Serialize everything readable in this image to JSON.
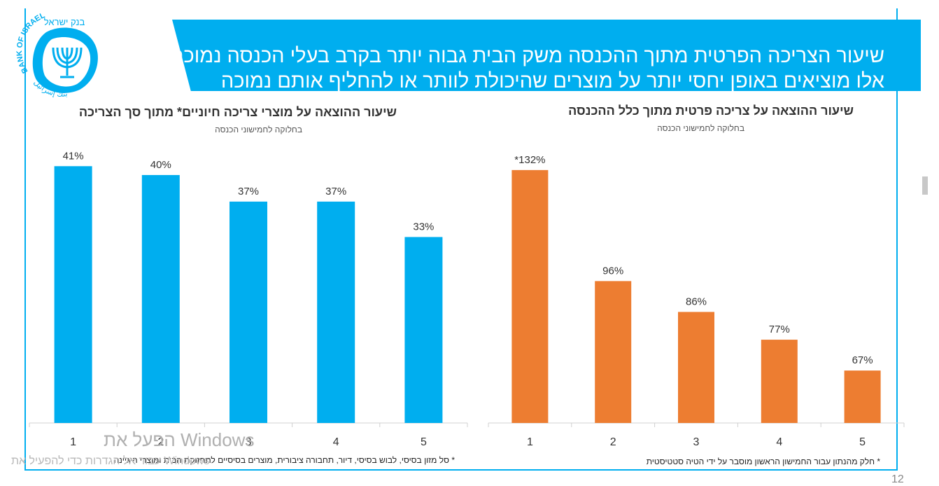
{
  "slide": {
    "title_line1": "שיעור הצריכה הפרטית מתוך ההכנסה משק הבית גבוה יותר בקרב בעלי הכנסה נמוכה;",
    "title_line2": "אלו מוציאים באופן יחסי יותר על מוצרים שהיכולת לוותר או להחליף אותם נמוכה",
    "logo_text_en": "BANK OF ISRAEL",
    "logo_text_he": "בנק ישראל",
    "logo_text_ar": "بنك إسرائيل",
    "watermark_line1": "הפעל את Windows",
    "watermark_line2": "עבור אל הגדרות כדי להפעיל את Windows",
    "page_number": "12"
  },
  "colors": {
    "accent": "#00aeef",
    "blue_bar": "#00aeef",
    "orange_bar": "#ed7d31",
    "axis": "#d0d0d0"
  },
  "chart_data": [
    {
      "type": "bar",
      "title": "שיעור ההוצאה על מוצרי צריכה חיוניים* מתוך סך הצריכה",
      "subtitle": "בחלוקה לחמישוני הכנסה",
      "footnote": "* סל מזון בסיסי, לבוש בסיסי, דיור, תחבורה ציבורית, מוצרים בסיסיים לתחזוקת הבית ומוצרי היגיינה",
      "categories": [
        "1",
        "2",
        "3",
        "4",
        "5"
      ],
      "values": [
        41,
        40,
        37,
        37,
        33
      ],
      "labels": [
        "41%",
        "40%",
        "37%",
        "37%",
        "33%"
      ],
      "ylim": [
        12,
        43
      ]
    },
    {
      "type": "bar",
      "title": "שיעור ההוצאה על צריכה פרטית מתוך כלל ההכנסה",
      "subtitle": "בחלוקה לחמישוני הכנסה",
      "footnote": "* חלק מהנתון עבור החמישון הראשון מוסבר על ידי הטיה סטטיסטית",
      "categories": [
        "1",
        "2",
        "3",
        "4",
        "5"
      ],
      "values": [
        132,
        96,
        86,
        77,
        67
      ],
      "labels": [
        "*132%",
        "96%",
        "86%",
        "77%",
        "67%"
      ],
      "ylim": [
        50,
        139
      ]
    }
  ]
}
